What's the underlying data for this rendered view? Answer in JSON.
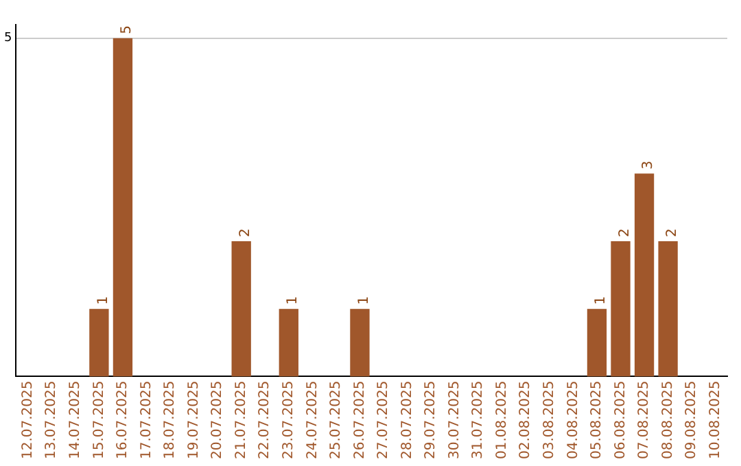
{
  "chart_data": {
    "type": "bar",
    "categories": [
      "12.07.2025",
      "13.07.2025",
      "14.07.2025",
      "15.07.2025",
      "16.07.2025",
      "17.07.2025",
      "18.07.2025",
      "19.07.2025",
      "20.07.2025",
      "21.07.2025",
      "22.07.2025",
      "23.07.2025",
      "24.07.2025",
      "25.07.2025",
      "26.07.2025",
      "27.07.2025",
      "28.07.2025",
      "29.07.2025",
      "30.07.2025",
      "31.07.2025",
      "01.08.2025",
      "02.08.2025",
      "03.08.2025",
      "04.08.2025",
      "05.08.2025",
      "06.08.2025",
      "07.08.2025",
      "08.08.2025",
      "09.08.2025",
      "10.08.2025"
    ],
    "values": [
      0,
      0,
      0,
      1,
      5,
      0,
      0,
      0,
      0,
      2,
      0,
      1,
      0,
      0,
      1,
      0,
      0,
      0,
      0,
      0,
      0,
      0,
      0,
      0,
      1,
      2,
      3,
      2,
      0,
      0
    ],
    "value_labels": [
      null,
      null,
      null,
      "1",
      "5",
      null,
      null,
      null,
      null,
      "2",
      null,
      "1",
      null,
      null,
      "1",
      null,
      null,
      null,
      null,
      null,
      null,
      null,
      null,
      null,
      "1",
      "2",
      "3",
      "2",
      null,
      null
    ],
    "color": "#a0572b",
    "ylim": [
      0,
      5.2
    ],
    "yticks": [
      5
    ],
    "grid": "y",
    "legend": false
  }
}
